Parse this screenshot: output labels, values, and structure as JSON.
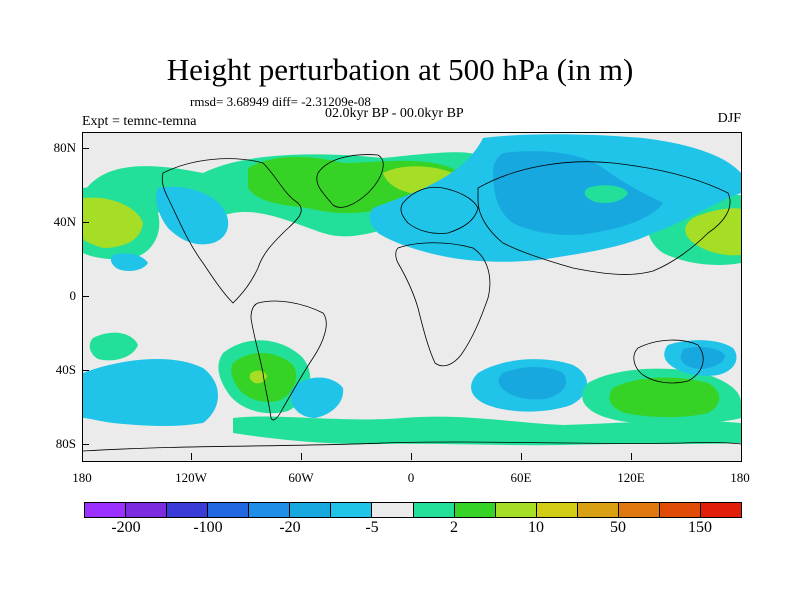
{
  "title": "Height perturbation at 500 hPa (in m)",
  "stats": "rmsd= 3.68949 diff= -2.31209e-08",
  "period": "02.0kyr BP - 00.0kyr BP",
  "experiment": "Expt = temnc-temna",
  "season": "DJF",
  "latitude_labels": [
    "80N",
    "40N",
    "0",
    "40S",
    "80S"
  ],
  "longitude_labels": [
    "180",
    "120W",
    "60W",
    "0",
    "60E",
    "120E",
    "180"
  ],
  "colorbar": {
    "colors": [
      "#9b30ff",
      "#7c2bde",
      "#3b3bd7",
      "#2268e0",
      "#1e8ee6",
      "#18a8e0",
      "#20c4e8",
      "#ebebeb",
      "#22e09a",
      "#36d226",
      "#a6de26",
      "#d2cc14",
      "#d8a012",
      "#e07810",
      "#e04c08",
      "#e01e0a"
    ],
    "labels": [
      "-200",
      "-100",
      "-20",
      "-5",
      "2",
      "10",
      "50",
      "150"
    ]
  },
  "field_colors": {
    "neutral": "#ebebeb",
    "light_blue": "#20c4e8",
    "blue": "#18a8e0",
    "teal": "#22e09a",
    "green": "#36d226",
    "yellow_green": "#a6de26",
    "coastline": "#000000"
  }
}
